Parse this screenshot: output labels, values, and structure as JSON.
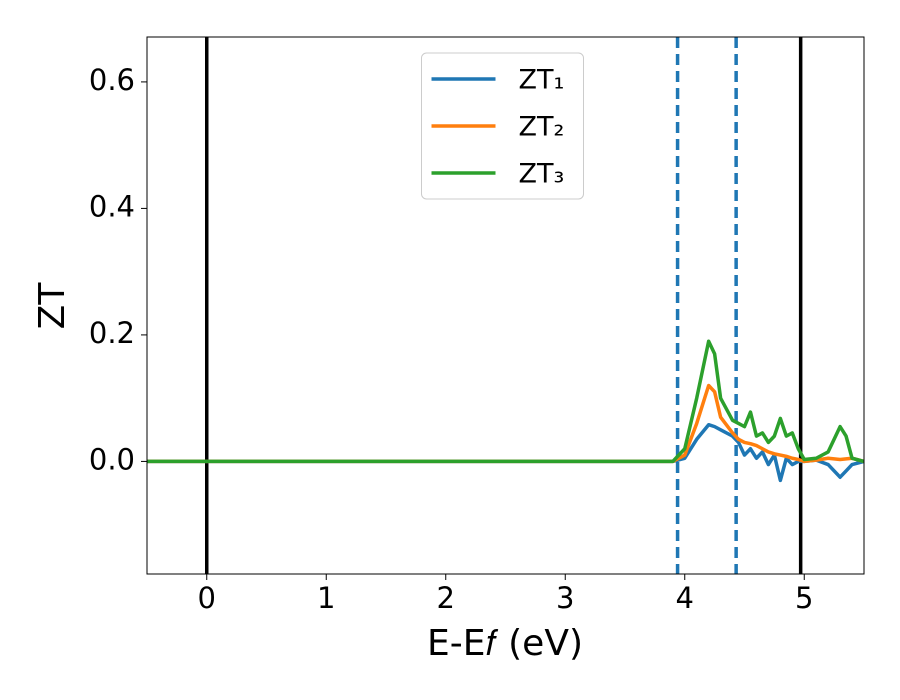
{
  "chart_data": {
    "type": "line",
    "xlabel": "E-E𝑓 (eV)",
    "ylabel": "ZT",
    "xlim": [
      -0.5,
      5.5
    ],
    "ylim": [
      -0.178,
      0.671
    ],
    "xticks": [
      0,
      1,
      2,
      3,
      4,
      5
    ],
    "yticks": [
      {
        "value": 0,
        "label": "0.0"
      },
      0.2,
      0.4,
      0.6
    ],
    "legend": "upper center",
    "x": [
      -0.5,
      3.9,
      4.0,
      4.1,
      4.2,
      4.25,
      4.3,
      4.4,
      4.45,
      4.5,
      4.55,
      4.6,
      4.65,
      4.7,
      4.75,
      4.8,
      4.85,
      4.9,
      4.95,
      5.0,
      5.1,
      5.2,
      5.3,
      5.35,
      5.4,
      5.5
    ],
    "series": [
      {
        "name": "ZT₁",
        "color": "#1f77b4",
        "values": [
          0,
          0,
          0.005,
          0.035,
          0.058,
          0.055,
          0.05,
          0.04,
          0.03,
          0.01,
          0.02,
          0.005,
          0.015,
          -0.005,
          0.01,
          -0.03,
          0.005,
          -0.005,
          0,
          0,
          0.002,
          -0.005,
          -0.025,
          -0.015,
          -0.005,
          0
        ]
      },
      {
        "name": "ZT₂",
        "color": "#ff7f0e",
        "values": [
          0,
          0,
          0.01,
          0.06,
          0.12,
          0.11,
          0.07,
          0.045,
          0.035,
          0.03,
          0.028,
          0.025,
          0.02,
          0.015,
          0.012,
          0.01,
          0.008,
          0.005,
          0.003,
          0,
          0.002,
          0.005,
          0.003,
          0.004,
          0.005,
          0
        ]
      },
      {
        "name": "ZT₃",
        "color": "#2ca02c",
        "values": [
          0,
          0,
          0.02,
          0.1,
          0.19,
          0.17,
          0.1,
          0.065,
          0.06,
          0.055,
          0.078,
          0.04,
          0.045,
          0.03,
          0.04,
          0.068,
          0.04,
          0.045,
          0.02,
          0.003,
          0.005,
          0.015,
          0.055,
          0.04,
          0.005,
          0
        ]
      }
    ],
    "vlines": [
      {
        "x": 0,
        "color": "#000000",
        "style": "solid"
      },
      {
        "x": 4.97,
        "color": "#000000",
        "style": "solid"
      },
      {
        "x": 3.94,
        "color": "#1f77b4",
        "style": "dashed"
      },
      {
        "x": 4.43,
        "color": "#1f77b4",
        "style": "dashed"
      }
    ]
  }
}
